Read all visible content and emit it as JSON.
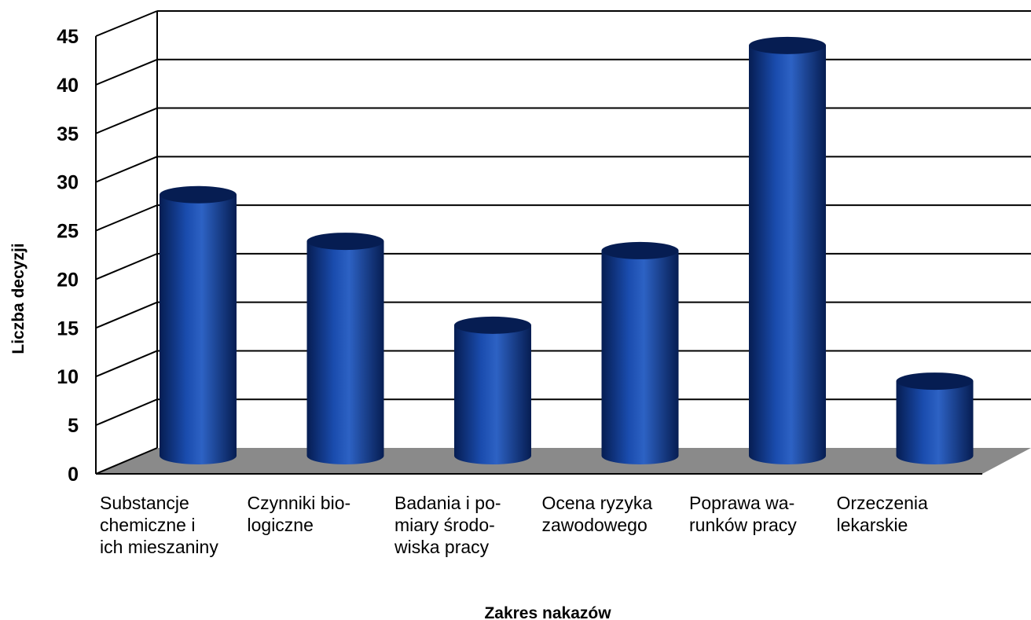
{
  "chart_data": {
    "type": "bar",
    "style": "3d-cylinder",
    "xlabel": "Zakres nakazów",
    "ylabel": "Liczba decyzji",
    "ylim": [
      0,
      45
    ],
    "yticks": [
      0,
      5,
      10,
      15,
      20,
      25,
      30,
      35,
      40,
      45
    ],
    "grid": true,
    "categories": [
      [
        "Substancje",
        "chemiczne i",
        "ich mieszaniny"
      ],
      [
        "Czynniki bio-",
        "logiczne"
      ],
      [
        "Badania i po-",
        "miary środo-",
        "wiska pracy"
      ],
      [
        "Ocena ryzyka",
        "zawodowego"
      ],
      [
        "Poprawa wa-",
        "runków pracy"
      ],
      [
        "Orzeczenia",
        "lekarskie"
      ]
    ],
    "values": [
      28,
      23,
      14,
      22,
      44,
      8
    ],
    "colors": {
      "bar": "#0d3a8e",
      "bar_dark": "#061d52",
      "bar_light": "#2d62c4",
      "floor": "#8a8a8a",
      "grid": "#000000"
    }
  }
}
